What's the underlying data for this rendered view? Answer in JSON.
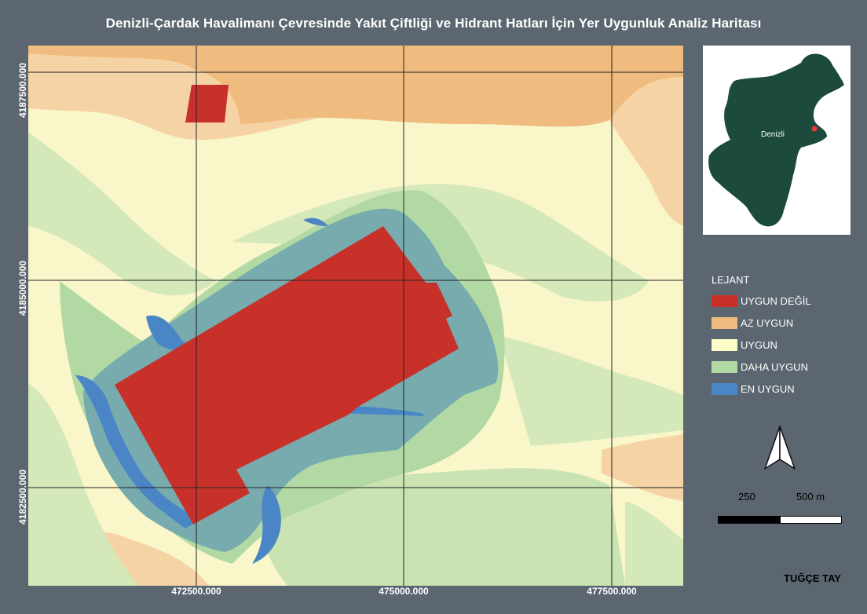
{
  "title": "Denizli-Çardak Havalimanı Çevresinde Yakıt Çiftliği ve Hidrant Hatları İçin Yer Uygunluk Analiz Haritası",
  "map": {
    "y_coordinates": [
      "4187500.000",
      "4185000.000",
      "4182500.000"
    ],
    "x_coordinates": [
      "472500.000",
      "475000.000",
      "477500.000"
    ],
    "grid_lines": "on",
    "colors": {
      "uygun_degil": "#c8312a",
      "az_uygun": "#f0bb7e",
      "uygun": "#f9f6c9",
      "daha_uygun": "#b2d9a3",
      "en_uygun": "#4a86c6",
      "blue_gray_buffer": "#77abae"
    }
  },
  "inset": {
    "label": "Denizli",
    "region_color": "#1c4a3c",
    "marker_color": "#e53935"
  },
  "legend": {
    "title": "LEJANT",
    "items": [
      {
        "label": "UYGUN DEĞİL",
        "color": "#c8312a"
      },
      {
        "label": "AZ UYGUN",
        "color": "#f0bb7e"
      },
      {
        "label": "UYGUN",
        "color": "#fdfdc7"
      },
      {
        "label": "DAHA UYGUN",
        "color": "#b2d9a3"
      },
      {
        "label": "EN UYGUN",
        "color": "#4a86c6"
      }
    ]
  },
  "north_arrow_icon": "north-arrow-icon",
  "scale": {
    "label_1": "250",
    "label_2": "500 m"
  },
  "author": "TUĞÇE TAY"
}
